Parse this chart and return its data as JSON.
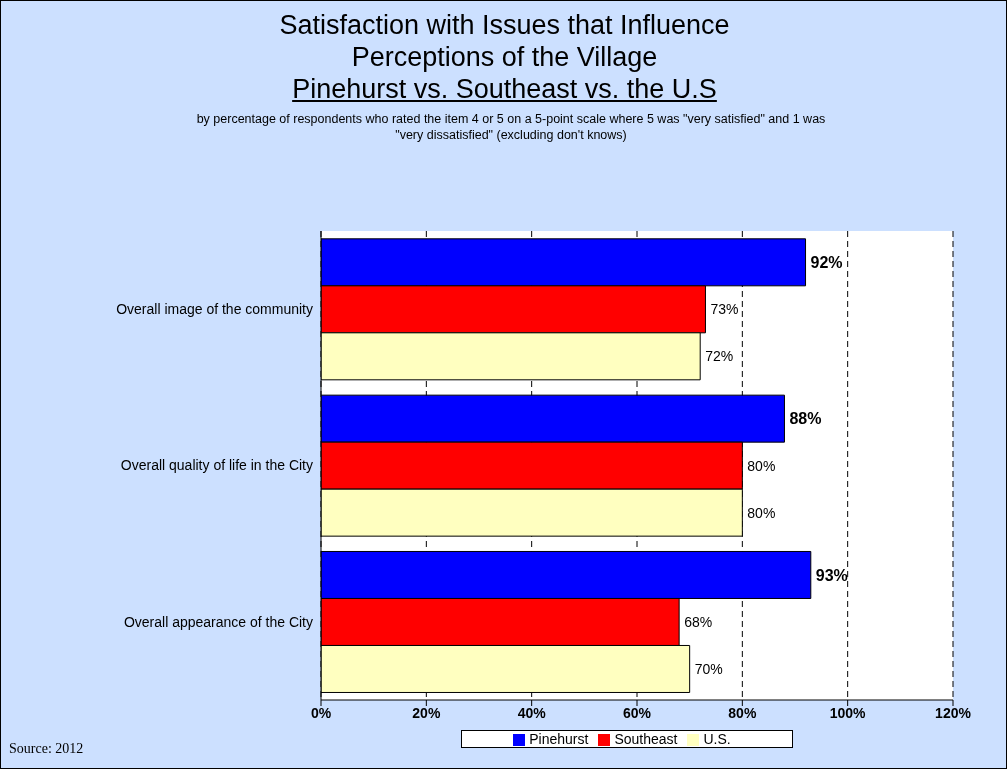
{
  "chart_data": {
    "type": "bar",
    "orientation": "horizontal",
    "title": "Satisfaction with Issues that Influence Perceptions of the Village",
    "subtitle": "Pinehurst vs. Southeast vs. the U.S",
    "annotations": [
      "by percentage of respondents who rated the item 4 or 5 on a 5-point scale where 5 was \"very satisfied\" and 1 was \"very dissatisfied\" (excluding don't knows)",
      "Source:  2012"
    ],
    "categories": [
      "Overall image of the community",
      "Overall quality of life in the City",
      "Overall appearance of the City"
    ],
    "series": [
      {
        "name": "Pinehurst",
        "color": "#0000ff",
        "values": [
          92,
          88,
          93
        ],
        "value_labels": [
          "92%",
          "88%",
          "93%"
        ]
      },
      {
        "name": "Southeast",
        "color": "#ff0000",
        "values": [
          73,
          80,
          68
        ],
        "value_labels": [
          "73%",
          "80%",
          "68%"
        ]
      },
      {
        "name": "U.S.",
        "color": "#ffffc0",
        "values": [
          72,
          80,
          70
        ],
        "value_labels": [
          "72%",
          "80%",
          "70%"
        ]
      }
    ],
    "xlim": [
      0,
      120
    ],
    "xticks": [
      {
        "value": 0,
        "label": "0%"
      },
      {
        "value": 20,
        "label": "20%"
      },
      {
        "value": 40,
        "label": "40%"
      },
      {
        "value": 60,
        "label": "60%"
      },
      {
        "value": 80,
        "label": "80%"
      },
      {
        "value": 100,
        "label": "100%"
      },
      {
        "value": 120,
        "label": "120%"
      }
    ],
    "grid": "x",
    "legend": "bottom"
  }
}
